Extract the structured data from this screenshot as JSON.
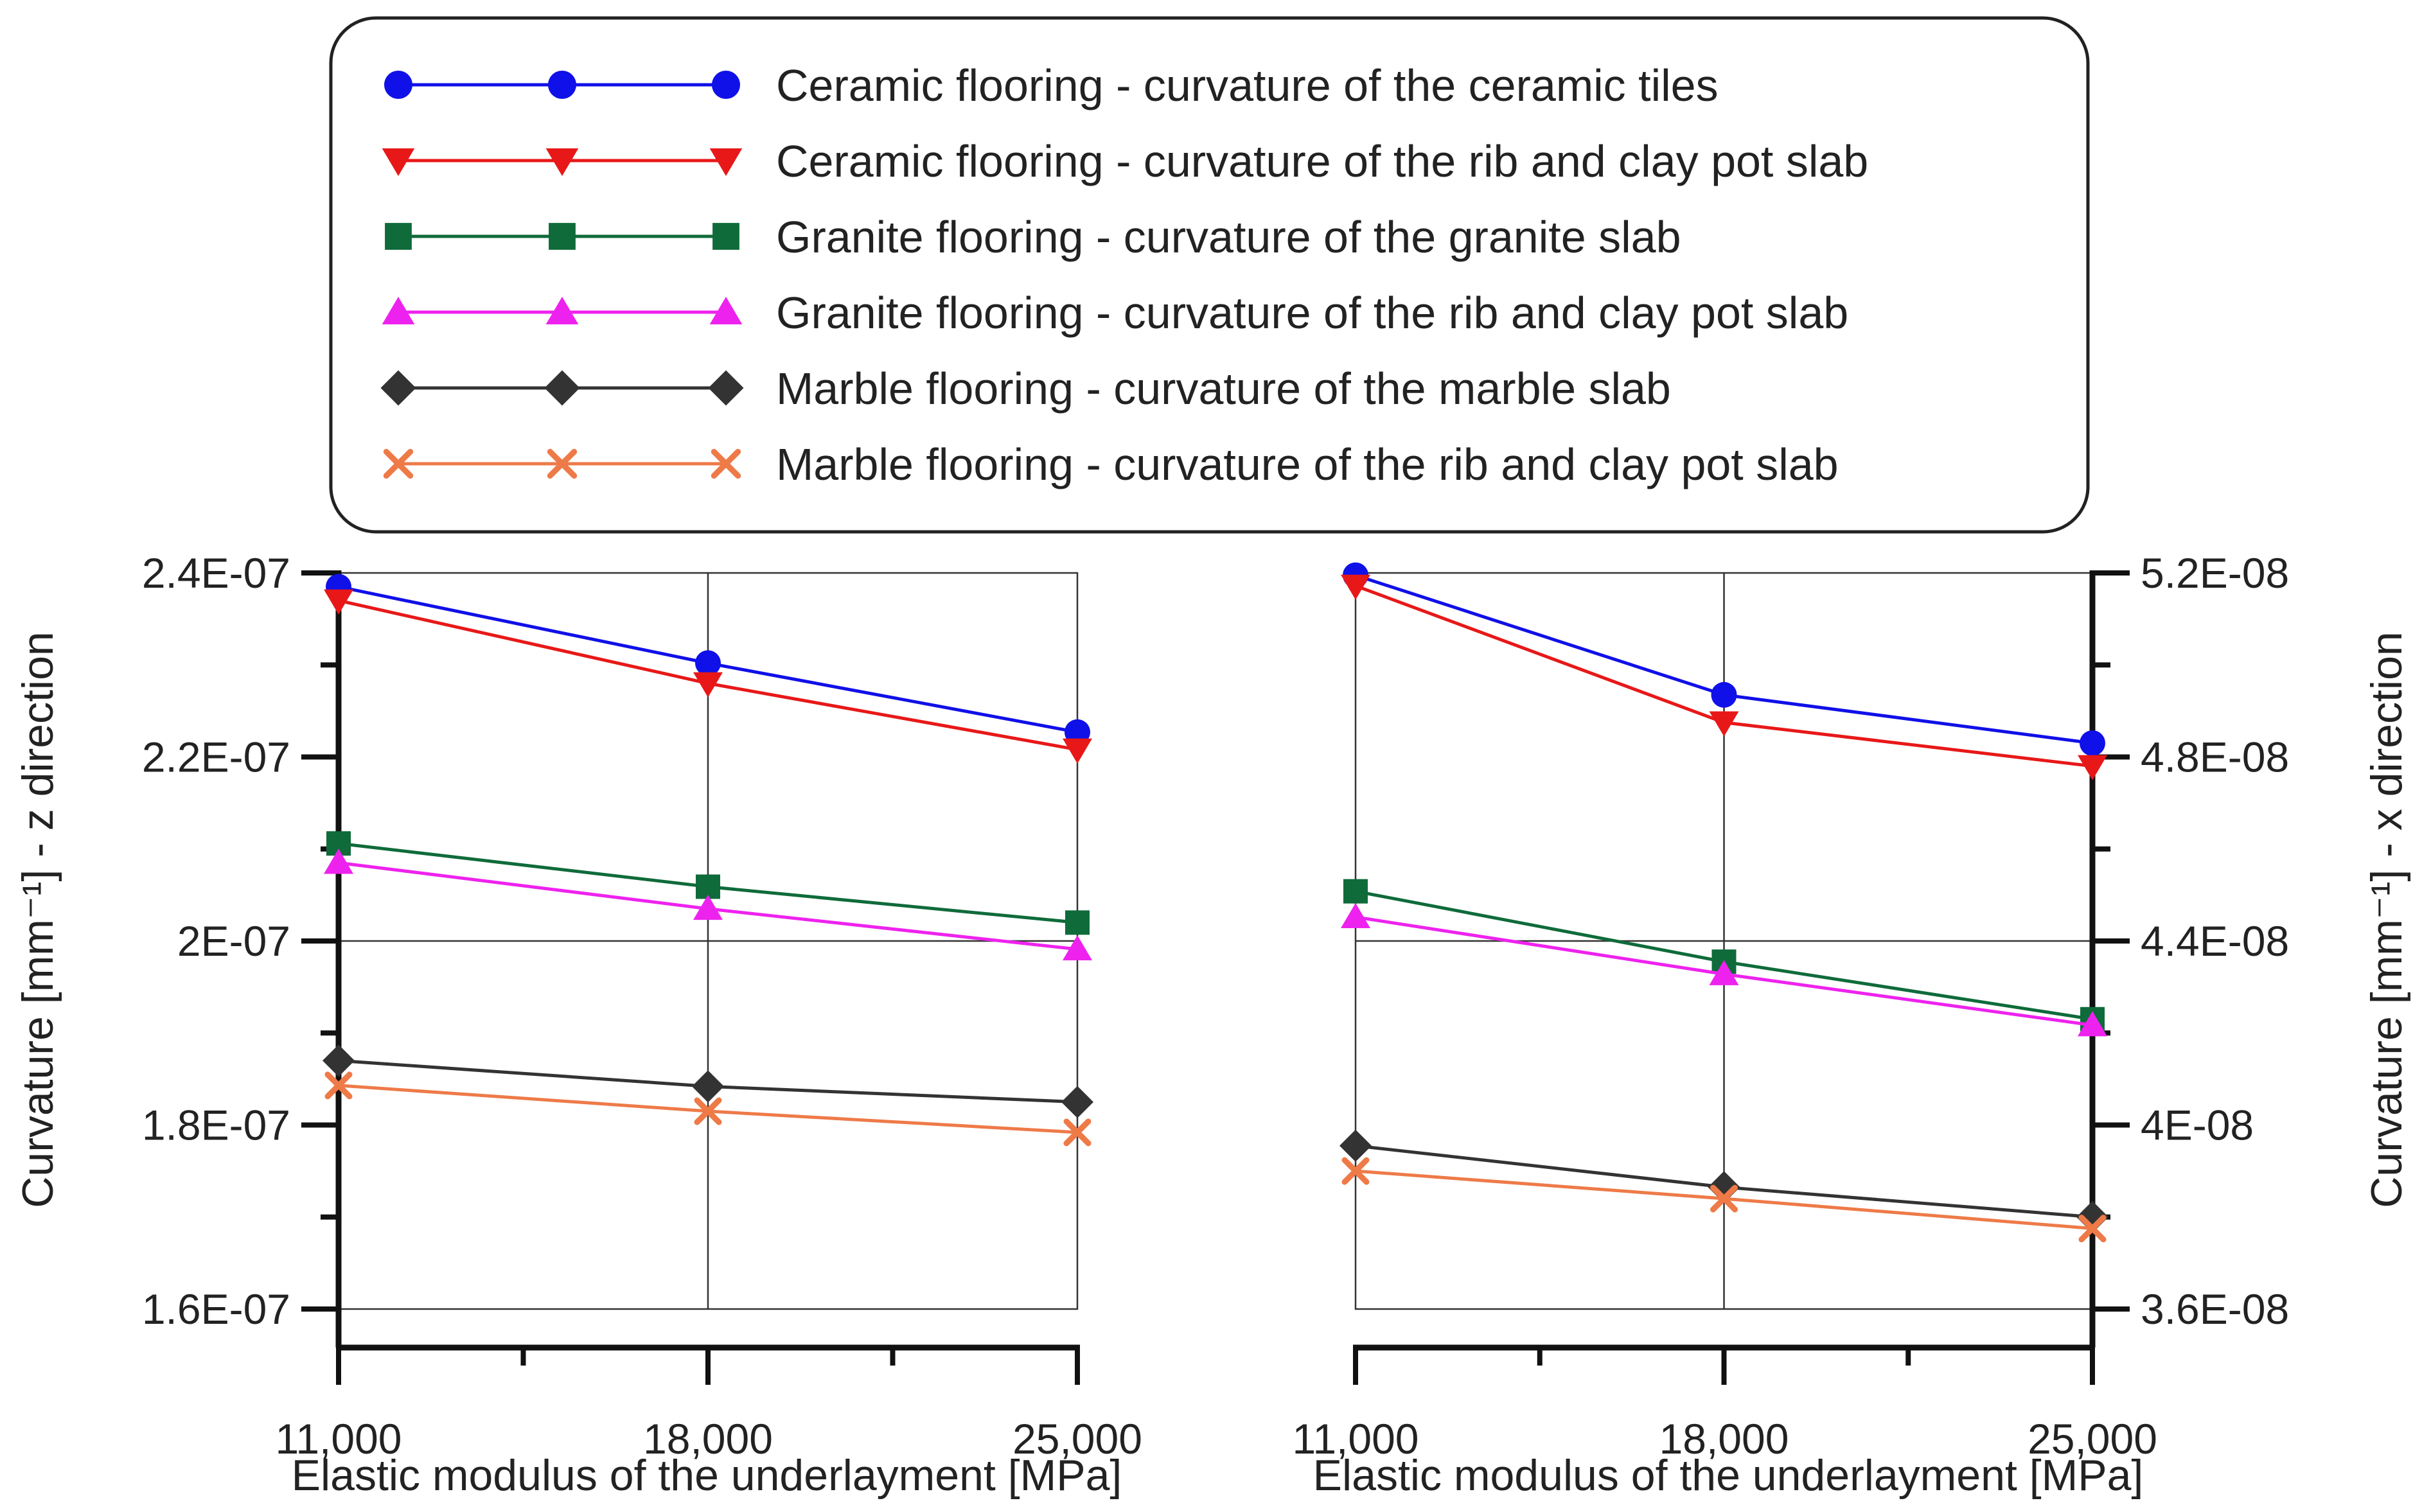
{
  "chart_data": [
    {
      "type": "line",
      "x": [
        "11,000",
        "18,000",
        "25,000"
      ],
      "xlabel": "Elastic modulus of the underlayment [MPa]",
      "ylabel": "Curvature [mm⁻¹] - z direction",
      "ylim": [
        1.6e-07,
        2.4e-07
      ],
      "yticks": [
        "1.6E-07",
        "1.8E-07",
        "2E-07",
        "2.2E-07",
        "2.4E-07"
      ],
      "grid": true,
      "series": [
        {
          "name": "Ceramic flooring - curvature of the ceramic tiles",
          "values": [
            2.385e-07,
            2.302e-07,
            2.227e-07
          ]
        },
        {
          "name": "Ceramic flooring - curvature of the rib and clay pot slab",
          "values": [
            2.37e-07,
            2.28e-07,
            2.208e-07
          ]
        },
        {
          "name": "Granite flooring - curvature of the granite slab",
          "values": [
            2.106e-07,
            2.059e-07,
            2.02e-07
          ]
        },
        {
          "name": "Granite flooring - curvature of the rib and clay pot slab",
          "values": [
            2.085e-07,
            2.035e-07,
            1.991e-07
          ]
        },
        {
          "name": "Marble flooring - curvature of the marble slab",
          "values": [
            1.87e-07,
            1.842e-07,
            1.825e-07
          ]
        },
        {
          "name": "Marble flooring - curvature of the rib and clay pot slab",
          "values": [
            1.843e-07,
            1.815e-07,
            1.792e-07
          ]
        }
      ]
    },
    {
      "type": "line",
      "x": [
        "11,000",
        "18,000",
        "25,000"
      ],
      "xlabel": "Elastic modulus of the underlayment [MPa]",
      "ylabel": "Curvature [mm⁻¹] - x direction",
      "ylim": [
        3.6e-08,
        5.2e-08
      ],
      "yticks": [
        "3.6E-08",
        "4E-08",
        "4.4E-08",
        "4.8E-08",
        "5.2E-08"
      ],
      "grid": true,
      "series": [
        {
          "name": "Ceramic flooring - curvature of the ceramic tiles",
          "values": [
            5.195e-08,
            4.935e-08,
            4.83e-08
          ]
        },
        {
          "name": "Ceramic flooring - curvature of the rib and clay pot slab",
          "values": [
            5.172e-08,
            4.875e-08,
            4.78e-08
          ]
        },
        {
          "name": "Granite flooring - curvature of the granite slab",
          "values": [
            4.508e-08,
            4.355e-08,
            4.23e-08
          ]
        },
        {
          "name": "Granite flooring - curvature of the rib and clay pot slab",
          "values": [
            4.452e-08,
            4.328e-08,
            4.217e-08
          ]
        },
        {
          "name": "Marble flooring - curvature of the marble slab",
          "values": [
            3.955e-08,
            3.865e-08,
            3.8e-08
          ]
        },
        {
          "name": "Marble flooring - curvature of the rib and clay pot slab",
          "values": [
            3.9e-08,
            3.84e-08,
            3.775e-08
          ]
        }
      ]
    }
  ],
  "legend": {
    "position": "top-center",
    "entries": [
      {
        "label": "Ceramic flooring - curvature of the ceramic tiles",
        "color": "#1010e8",
        "marker": "circle"
      },
      {
        "label": "Ceramic flooring - curvature of the rib and clay pot slab",
        "color": "#e81818",
        "marker": "triangle-down"
      },
      {
        "label": "Granite flooring - curvature of the granite slab",
        "color": "#0f6b3a",
        "marker": "square"
      },
      {
        "label": "Granite flooring - curvature of the rib and clay pot slab",
        "color": "#ee22ee",
        "marker": "triangle-up"
      },
      {
        "label": "Marble flooring - curvature of the marble slab",
        "color": "#333333",
        "marker": "diamond"
      },
      {
        "label": "Marble flooring - curvature of the rib and clay pot slab",
        "color": "#ee7a48",
        "marker": "cross"
      }
    ]
  }
}
